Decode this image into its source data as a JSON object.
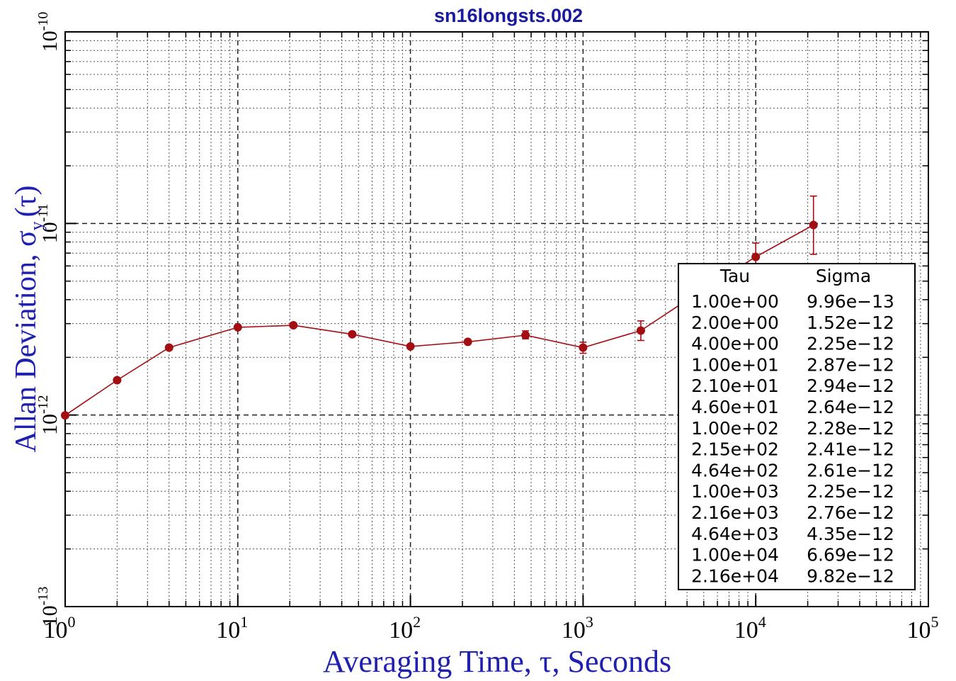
{
  "chart_data": {
    "type": "line",
    "subtitle": "sn16longsts.002",
    "xlabel": "Averaging Time, τ, Seconds",
    "ylabel_main": "Allan Deviation, σ",
    "ylabel_sub": "y",
    "ylabel_tail": "(τ)",
    "x_scale": "log",
    "y_scale": "log",
    "xlim": [
      1,
      100000
    ],
    "ylim": [
      1e-13,
      1e-10
    ],
    "grid": true,
    "x_ticks": [
      {
        "value": 1,
        "base": "10",
        "exp": "0"
      },
      {
        "value": 10,
        "base": "10",
        "exp": "1"
      },
      {
        "value": 100,
        "base": "10",
        "exp": "2"
      },
      {
        "value": 1000,
        "base": "10",
        "exp": "3"
      },
      {
        "value": 10000,
        "base": "10",
        "exp": "4"
      },
      {
        "value": 100000,
        "base": "10",
        "exp": "5"
      }
    ],
    "y_ticks": [
      {
        "value": 1e-13,
        "base": "10",
        "exp": "-13"
      },
      {
        "value": 1e-12,
        "base": "10",
        "exp": "-12"
      },
      {
        "value": 1e-11,
        "base": "10",
        "exp": "-11"
      },
      {
        "value": 1e-10,
        "base": "10",
        "exp": "-10"
      }
    ],
    "series": [
      {
        "color": "#a30e12",
        "points": [
          {
            "x": 1,
            "y": 9.96e-13,
            "err_lo": 9.96e-13,
            "err_hi": 9.96e-13
          },
          {
            "x": 2,
            "y": 1.52e-12,
            "err_lo": 1.52e-12,
            "err_hi": 1.52e-12
          },
          {
            "x": 4,
            "y": 2.25e-12,
            "err_lo": 2.25e-12,
            "err_hi": 2.25e-12
          },
          {
            "x": 10,
            "y": 2.87e-12,
            "err_lo": 2.87e-12,
            "err_hi": 2.87e-12
          },
          {
            "x": 21,
            "y": 2.94e-12,
            "err_lo": 2.94e-12,
            "err_hi": 2.94e-12
          },
          {
            "x": 46,
            "y": 2.64e-12,
            "err_lo": 2.64e-12,
            "err_hi": 2.64e-12
          },
          {
            "x": 100,
            "y": 2.28e-12,
            "err_lo": 2.28e-12,
            "err_hi": 2.28e-12
          },
          {
            "x": 215,
            "y": 2.41e-12,
            "err_lo": 2.41e-12,
            "err_hi": 2.41e-12
          },
          {
            "x": 464,
            "y": 2.61e-12,
            "err_lo": 2.5e-12,
            "err_hi": 2.75e-12
          },
          {
            "x": 1000,
            "y": 2.25e-12,
            "err_lo": 2.1e-12,
            "err_hi": 2.4e-12
          },
          {
            "x": 2160,
            "y": 2.76e-12,
            "err_lo": 2.45e-12,
            "err_hi": 3.1e-12
          },
          {
            "x": 4640,
            "y": 4.35e-12,
            "err_lo": 3.9e-12,
            "err_hi": 4.8e-12
          },
          {
            "x": 10000,
            "y": 6.69e-12,
            "err_lo": 5.7e-12,
            "err_hi": 7.9e-12
          },
          {
            "x": 21600,
            "y": 9.82e-12,
            "err_lo": 6.9e-12,
            "err_hi": 1.39e-11
          }
        ]
      }
    ],
    "legend_table": {
      "placement": "lower-right",
      "headers": [
        "Tau",
        "Sigma"
      ],
      "rows": [
        [
          "1.00e+00",
          "9.96e−13"
        ],
        [
          "2.00e+00",
          "1.52e−12"
        ],
        [
          "4.00e+00",
          "2.25e−12"
        ],
        [
          "1.00e+01",
          "2.87e−12"
        ],
        [
          "2.10e+01",
          "2.94e−12"
        ],
        [
          "4.60e+01",
          "2.64e−12"
        ],
        [
          "1.00e+02",
          "2.28e−12"
        ],
        [
          "2.15e+02",
          "2.41e−12"
        ],
        [
          "4.64e+02",
          "2.61e−12"
        ],
        [
          "1.00e+03",
          "2.25e−12"
        ],
        [
          "2.16e+03",
          "2.76e−12"
        ],
        [
          "4.64e+03",
          "4.35e−12"
        ],
        [
          "1.00e+04",
          "6.69e−12"
        ],
        [
          "2.16e+04",
          "9.82e−12"
        ]
      ]
    },
    "colors": {
      "axis_title": "#2020b0",
      "subtitle": "#1a1aa0",
      "series": "#a30e12",
      "grid": "#000000"
    }
  }
}
